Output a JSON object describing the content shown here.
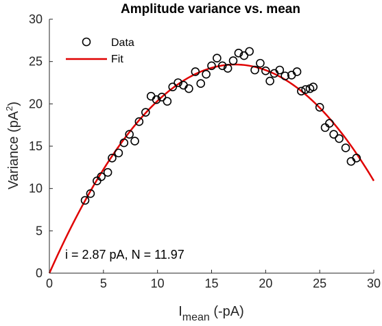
{
  "chart_data": {
    "type": "scatter",
    "title": "Amplitude variance vs. mean",
    "xlabel_main": "I",
    "xlabel_sub": "mean",
    "xlabel_rest": " (-pA)",
    "ylabel_main": "Variance (pA",
    "ylabel_sup": "2",
    "ylabel_end": ")",
    "xlim": [
      0,
      30
    ],
    "ylim": [
      0,
      30
    ],
    "xticks": [
      "0",
      "5",
      "10",
      "15",
      "20",
      "25",
      "30"
    ],
    "yticks": [
      "0",
      "5",
      "10",
      "15",
      "20",
      "25",
      "30"
    ],
    "grid": false,
    "legend_position": "top-left",
    "annotation": "i = 2.87 pA, N = 11.97",
    "colors": {
      "data_marker": "#000000",
      "fit_line": "#e00000"
    },
    "series": [
      {
        "name": "Data",
        "kind": "scatter",
        "x": [
          3.3,
          3.8,
          4.4,
          4.8,
          5.4,
          5.8,
          6.4,
          6.9,
          7.4,
          7.9,
          8.3,
          8.9,
          9.4,
          9.9,
          10.4,
          10.9,
          11.4,
          11.9,
          12.4,
          12.9,
          13.5,
          14.0,
          14.5,
          15.0,
          15.5,
          16.0,
          16.5,
          17.0,
          17.5,
          18.0,
          18.5,
          19.0,
          19.5,
          20.0,
          20.4,
          20.8,
          21.3,
          21.8,
          22.4,
          22.9,
          23.3,
          23.7,
          24.1,
          24.4,
          25.0,
          25.5,
          25.9,
          26.3,
          26.8,
          27.4,
          27.9,
          28.4
        ],
        "y": [
          8.6,
          9.4,
          10.9,
          11.4,
          11.9,
          13.6,
          14.2,
          15.4,
          16.4,
          15.6,
          17.9,
          19.0,
          20.9,
          20.5,
          20.8,
          20.3,
          22.0,
          22.5,
          22.2,
          21.8,
          23.8,
          22.4,
          23.5,
          24.5,
          25.4,
          24.5,
          24.2,
          25.1,
          26.0,
          25.7,
          26.2,
          24.0,
          24.8,
          23.9,
          22.7,
          23.6,
          24.0,
          23.3,
          23.4,
          23.8,
          21.5,
          21.7,
          21.8,
          22.0,
          19.6,
          17.2,
          17.7,
          16.4,
          15.9,
          14.8,
          13.2,
          13.6
        ]
      },
      {
        "name": "Fit",
        "kind": "line",
        "model": "variance = i*I - I^2/N",
        "i": 2.87,
        "N": 11.97
      }
    ]
  }
}
